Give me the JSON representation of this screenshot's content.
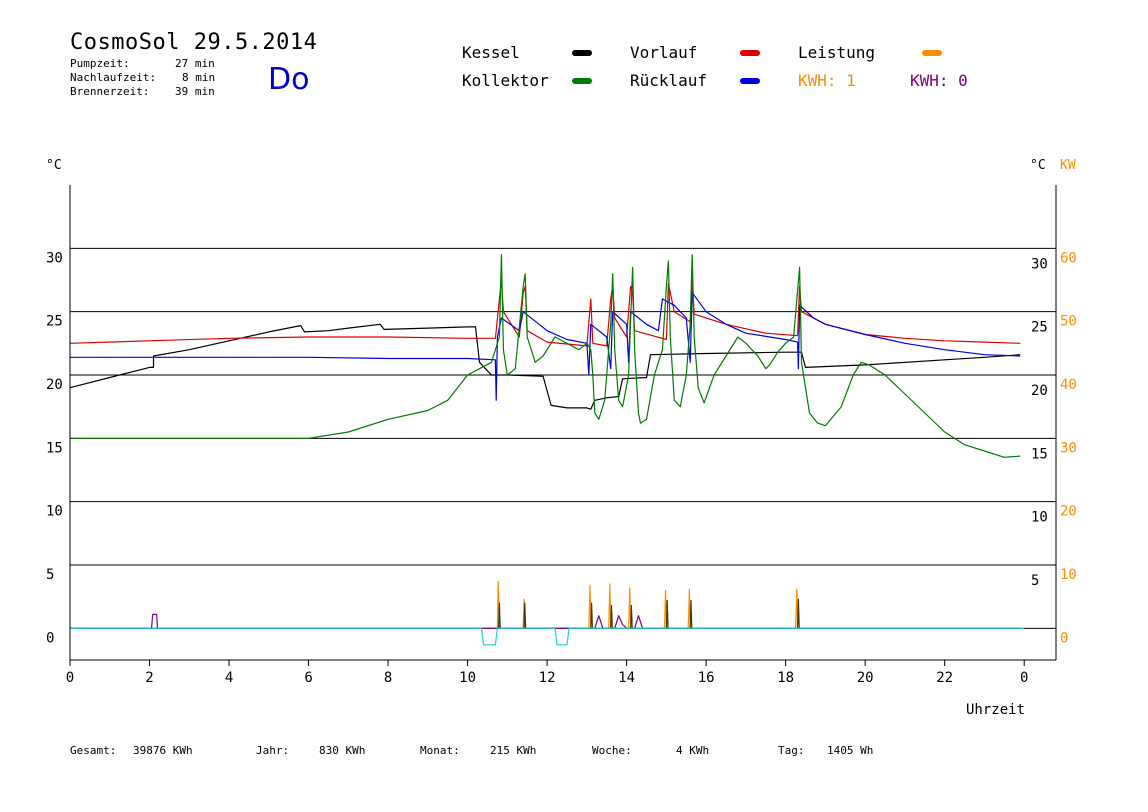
{
  "header": {
    "title": "CosmoSol 29.5.2014",
    "day": "Do",
    "stats": [
      {
        "label": "Pumpzeit:",
        "value": "27 min"
      },
      {
        "label": "Nachlaufzeit:",
        "value": "8 min"
      },
      {
        "label": "Brennerzeit:",
        "value": "39 min"
      }
    ]
  },
  "legend": {
    "items": [
      {
        "label": "Kessel",
        "color": "#000000"
      },
      {
        "label": "Kollektor",
        "color": "#007a00"
      },
      {
        "label": "Vorlauf",
        "color": "#e00000"
      },
      {
        "label": "Rücklauf",
        "color": "#0000dd"
      },
      {
        "label": "Leistung",
        "color": "#ff8c00"
      }
    ],
    "kwh": [
      {
        "label": "KWH: 1",
        "color": "#ff8c00"
      },
      {
        "label": "KWH: 0",
        "color": "#800080"
      }
    ]
  },
  "footer": [
    {
      "label": "Gesamt:",
      "value": "39876 KWh"
    },
    {
      "label": "Jahr:",
      "value": "830 KWh"
    },
    {
      "label": "Monat:",
      "value": "215 KWh"
    },
    {
      "label": "Woche:",
      "value": "4 KWh"
    },
    {
      "label": "Tag:",
      "value": "1405 Wh"
    }
  ],
  "chart_data": {
    "type": "line",
    "xlabel": "Uhrzeit",
    "ylabel_left": "°C",
    "ylabel_right_temp": "°C",
    "ylabel_right_power": "KW",
    "x_ticks": [
      "0",
      "2",
      "4",
      "6",
      "8",
      "10",
      "12",
      "14",
      "16",
      "18",
      "20",
      "22",
      "0"
    ],
    "xlim": [
      0,
      24.8
    ],
    "ylim": [
      -2.5,
      35
    ],
    "y_ticks_left": [
      "0",
      "5",
      "10",
      "15",
      "20",
      "25",
      "30"
    ],
    "y_ticks_right_temp": [
      "5",
      "10",
      "15",
      "20",
      "25",
      "30"
    ],
    "y_ticks_right_power": [
      "0",
      "10",
      "20",
      "30",
      "40",
      "50",
      "60"
    ],
    "grid_y": [
      5,
      10,
      15,
      20,
      25,
      30
    ],
    "series": [
      {
        "key": "kessel",
        "color": "#000000",
        "points": [
          [
            0,
            19
          ],
          [
            1,
            19.8
          ],
          [
            2,
            20.6
          ],
          [
            2.1,
            20.6
          ],
          [
            2.1,
            21.5
          ],
          [
            3,
            22
          ],
          [
            4,
            22.7
          ],
          [
            5,
            23.4
          ],
          [
            5.8,
            23.9
          ],
          [
            5.9,
            23.4
          ],
          [
            6.5,
            23.5
          ],
          [
            7,
            23.7
          ],
          [
            7.8,
            24
          ],
          [
            7.9,
            23.6
          ],
          [
            9,
            23.7
          ],
          [
            10,
            23.8
          ],
          [
            10.2,
            23.8
          ],
          [
            10.3,
            21
          ],
          [
            10.6,
            20
          ],
          [
            11,
            20
          ],
          [
            11.9,
            19.9
          ],
          [
            12.1,
            17.6
          ],
          [
            12.5,
            17.4
          ],
          [
            13,
            17.4
          ],
          [
            13.1,
            17.3
          ],
          [
            13.2,
            18
          ],
          [
            13.5,
            18.2
          ],
          [
            13.8,
            18.3
          ],
          [
            13.9,
            19.7
          ],
          [
            14.5,
            19.8
          ],
          [
            14.6,
            21.6
          ],
          [
            16,
            21.7
          ],
          [
            18,
            21.8
          ],
          [
            18.4,
            21.8
          ],
          [
            18.5,
            20.6
          ],
          [
            20,
            20.8
          ],
          [
            22,
            21.2
          ],
          [
            23,
            21.4
          ],
          [
            23.9,
            21.6
          ]
        ]
      },
      {
        "key": "vorlauf",
        "color": "#e00000",
        "points": [
          [
            0,
            22.5
          ],
          [
            2,
            22.7
          ],
          [
            4,
            22.9
          ],
          [
            6,
            23
          ],
          [
            8,
            23
          ],
          [
            10,
            22.9
          ],
          [
            10.7,
            22.9
          ],
          [
            10.8,
            26
          ],
          [
            10.85,
            27.5
          ],
          [
            10.9,
            25
          ],
          [
            11.3,
            23
          ],
          [
            11.4,
            26.5
          ],
          [
            11.45,
            27
          ],
          [
            11.5,
            23.5
          ],
          [
            12,
            22.6
          ],
          [
            13,
            22.3
          ],
          [
            13.1,
            26
          ],
          [
            13.15,
            22.5
          ],
          [
            13.5,
            22.3
          ],
          [
            13.6,
            26
          ],
          [
            13.65,
            27
          ],
          [
            13.7,
            24.5
          ],
          [
            14,
            23
          ],
          [
            14.1,
            27
          ],
          [
            14.15,
            26.5
          ],
          [
            14.2,
            23.5
          ],
          [
            15,
            22.8
          ],
          [
            15.05,
            27.2
          ],
          [
            15.1,
            26.5
          ],
          [
            15.2,
            25
          ],
          [
            15.6,
            24.2
          ],
          [
            15.65,
            27.5
          ],
          [
            15.7,
            24.8
          ],
          [
            16.5,
            24
          ],
          [
            17.5,
            23.3
          ],
          [
            18.3,
            23.1
          ],
          [
            18.35,
            27
          ],
          [
            18.4,
            25
          ],
          [
            19,
            24
          ],
          [
            20,
            23.2
          ],
          [
            21,
            22.9
          ],
          [
            22,
            22.7
          ],
          [
            23,
            22.6
          ],
          [
            23.9,
            22.5
          ]
        ]
      },
      {
        "key": "ruecklauf",
        "color": "#0000dd",
        "points": [
          [
            0,
            21.4
          ],
          [
            2,
            21.4
          ],
          [
            4,
            21.4
          ],
          [
            6,
            21.4
          ],
          [
            8,
            21.3
          ],
          [
            10,
            21.3
          ],
          [
            10.7,
            21.2
          ],
          [
            10.72,
            18
          ],
          [
            10.75,
            23
          ],
          [
            10.85,
            24.5
          ],
          [
            11.3,
            23.5
          ],
          [
            11.4,
            25
          ],
          [
            12,
            23.5
          ],
          [
            12.5,
            22.8
          ],
          [
            13,
            22.5
          ],
          [
            13.05,
            20
          ],
          [
            13.1,
            24
          ],
          [
            13.5,
            23
          ],
          [
            13.6,
            20.5
          ],
          [
            13.65,
            25
          ],
          [
            14,
            24
          ],
          [
            14.05,
            21
          ],
          [
            14.1,
            25
          ],
          [
            14.5,
            24
          ],
          [
            14.8,
            23.5
          ],
          [
            14.9,
            26
          ],
          [
            15.2,
            25.5
          ],
          [
            15.5,
            24.5
          ],
          [
            15.6,
            21
          ],
          [
            15.65,
            26.5
          ],
          [
            16,
            25
          ],
          [
            16.5,
            24
          ],
          [
            17,
            23.3
          ],
          [
            18,
            22.8
          ],
          [
            18.3,
            22.6
          ],
          [
            18.32,
            20.5
          ],
          [
            18.35,
            25.5
          ],
          [
            18.7,
            24.5
          ],
          [
            19,
            24
          ],
          [
            20,
            23.2
          ],
          [
            21,
            22.5
          ],
          [
            22,
            22
          ],
          [
            23,
            21.6
          ],
          [
            23.9,
            21.5
          ]
        ]
      },
      {
        "key": "kollektor",
        "color": "#007a00",
        "points": [
          [
            0,
            15
          ],
          [
            2,
            15
          ],
          [
            4,
            15
          ],
          [
            6,
            15
          ],
          [
            7,
            15.5
          ],
          [
            8,
            16.5
          ],
          [
            9,
            17.2
          ],
          [
            9.5,
            18
          ],
          [
            10,
            20
          ],
          [
            10.3,
            20.5
          ],
          [
            10.6,
            21
          ],
          [
            10.8,
            23
          ],
          [
            10.85,
            29.5
          ],
          [
            10.9,
            22
          ],
          [
            11,
            20
          ],
          [
            11.2,
            20.5
          ],
          [
            11.4,
            27
          ],
          [
            11.45,
            28
          ],
          [
            11.5,
            23
          ],
          [
            11.7,
            21
          ],
          [
            11.9,
            21.5
          ],
          [
            12.1,
            22.5
          ],
          [
            12.2,
            23
          ],
          [
            12.5,
            22.5
          ],
          [
            12.8,
            22
          ],
          [
            13.0,
            22.5
          ],
          [
            13.1,
            22
          ],
          [
            13.15,
            20
          ],
          [
            13.2,
            17
          ],
          [
            13.3,
            16.5
          ],
          [
            13.45,
            18
          ],
          [
            13.6,
            24
          ],
          [
            13.65,
            28
          ],
          [
            13.7,
            22
          ],
          [
            13.8,
            18
          ],
          [
            13.9,
            17.5
          ],
          [
            14.05,
            20
          ],
          [
            14.15,
            28.5
          ],
          [
            14.2,
            22
          ],
          [
            14.3,
            17
          ],
          [
            14.35,
            16.2
          ],
          [
            14.5,
            16.5
          ],
          [
            14.7,
            20
          ],
          [
            14.9,
            22
          ],
          [
            15.0,
            27
          ],
          [
            15.05,
            29
          ],
          [
            15.1,
            23
          ],
          [
            15.2,
            18
          ],
          [
            15.35,
            17.5
          ],
          [
            15.5,
            20
          ],
          [
            15.6,
            24
          ],
          [
            15.65,
            29.5
          ],
          [
            15.7,
            23
          ],
          [
            15.8,
            19
          ],
          [
            15.95,
            17.8
          ],
          [
            16.2,
            20
          ],
          [
            16.5,
            21.5
          ],
          [
            16.8,
            23
          ],
          [
            17,
            22.5
          ],
          [
            17.3,
            21.5
          ],
          [
            17.5,
            20.5
          ],
          [
            17.6,
            20.8
          ],
          [
            17.8,
            21.8
          ],
          [
            18,
            22.5
          ],
          [
            18.2,
            23
          ],
          [
            18.35,
            28.5
          ],
          [
            18.4,
            21
          ],
          [
            18.6,
            17
          ],
          [
            18.8,
            16.2
          ],
          [
            19,
            16
          ],
          [
            19.4,
            17.5
          ],
          [
            19.7,
            20
          ],
          [
            19.9,
            21
          ],
          [
            20.1,
            20.8
          ],
          [
            20.5,
            20
          ],
          [
            21,
            18.5
          ],
          [
            21.5,
            17
          ],
          [
            22,
            15.5
          ],
          [
            22.5,
            14.5
          ],
          [
            23,
            14
          ],
          [
            23.5,
            13.5
          ],
          [
            23.9,
            13.6
          ]
        ]
      },
      {
        "key": "leistung",
        "color": "#ff8c00",
        "points": [
          [
            0,
            0
          ],
          [
            10.7,
            0
          ],
          [
            10.75,
            0
          ],
          [
            10.77,
            3.7
          ],
          [
            10.8,
            0
          ],
          [
            11.4,
            0
          ],
          [
            11.42,
            2.3
          ],
          [
            11.45,
            0
          ],
          [
            13.05,
            0
          ],
          [
            13.08,
            3.4
          ],
          [
            13.1,
            0
          ],
          [
            13.55,
            0
          ],
          [
            13.58,
            3.5
          ],
          [
            13.6,
            0
          ],
          [
            14.05,
            0
          ],
          [
            14.08,
            3.2
          ],
          [
            14.1,
            0
          ],
          [
            14.95,
            0
          ],
          [
            14.98,
            3.0
          ],
          [
            15.0,
            0
          ],
          [
            15.55,
            0
          ],
          [
            15.58,
            3.1
          ],
          [
            15.6,
            0
          ],
          [
            18.25,
            0
          ],
          [
            18.28,
            3.1
          ],
          [
            18.3,
            0
          ],
          [
            23.9,
            0
          ]
        ]
      },
      {
        "key": "leistung_dark",
        "color": "#3b3b00",
        "points": [
          [
            0,
            0
          ],
          [
            10.78,
            0
          ],
          [
            10.8,
            2.0
          ],
          [
            10.82,
            0
          ],
          [
            11.42,
            0
          ],
          [
            11.44,
            2.0
          ],
          [
            11.46,
            0
          ],
          [
            13.1,
            0
          ],
          [
            13.12,
            2.0
          ],
          [
            13.14,
            0
          ],
          [
            13.6,
            0
          ],
          [
            13.62,
            1.8
          ],
          [
            13.64,
            0
          ],
          [
            14.1,
            0
          ],
          [
            14.12,
            1.8
          ],
          [
            14.14,
            0
          ],
          [
            15.0,
            0
          ],
          [
            15.02,
            2.2
          ],
          [
            15.04,
            0
          ],
          [
            15.6,
            0
          ],
          [
            15.62,
            2.2
          ],
          [
            15.64,
            0
          ],
          [
            18.3,
            0
          ],
          [
            18.32,
            2.3
          ],
          [
            18.34,
            0
          ],
          [
            23.9,
            0
          ]
        ]
      },
      {
        "key": "kwh0",
        "color": "#800080",
        "points": [
          [
            0,
            0
          ],
          [
            2.05,
            0
          ],
          [
            2.08,
            1.1
          ],
          [
            2.18,
            1.1
          ],
          [
            2.2,
            0
          ],
          [
            13.2,
            0
          ],
          [
            13.3,
            1.0
          ],
          [
            13.4,
            0
          ],
          [
            13.7,
            0
          ],
          [
            13.8,
            1.0
          ],
          [
            13.9,
            0.3
          ],
          [
            14.0,
            0
          ],
          [
            14.2,
            0
          ],
          [
            14.3,
            1.0
          ],
          [
            14.4,
            0
          ],
          [
            23.9,
            0
          ]
        ]
      },
      {
        "key": "pumpe",
        "color": "#20d0d0",
        "points": [
          [
            0,
            0
          ],
          [
            10.35,
            0
          ],
          [
            10.4,
            -1.3
          ],
          [
            10.7,
            -1.3
          ],
          [
            10.75,
            0
          ],
          [
            12.2,
            0
          ],
          [
            12.25,
            -1.3
          ],
          [
            12.5,
            -1.3
          ],
          [
            12.55,
            0
          ],
          [
            24,
            0
          ]
        ]
      }
    ]
  }
}
